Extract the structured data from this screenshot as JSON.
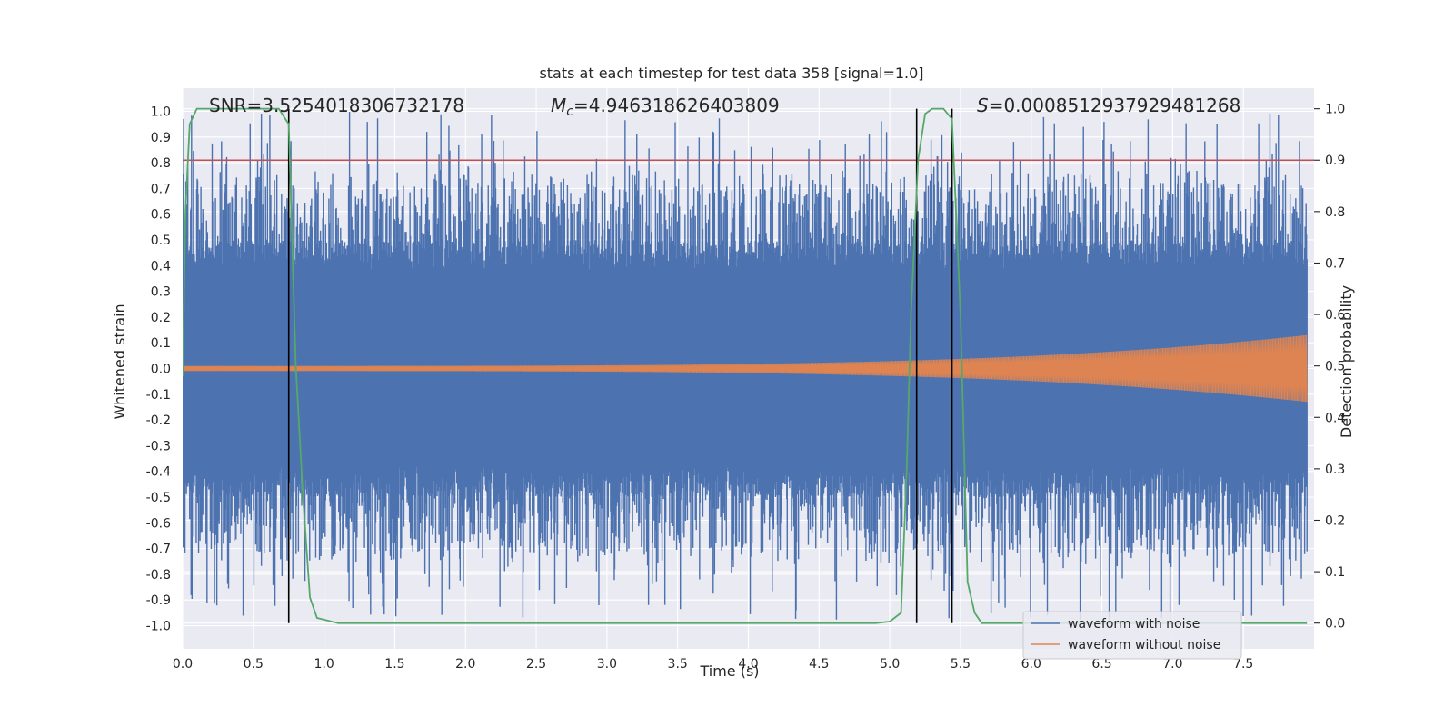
{
  "chart_data": {
    "type": "line",
    "title": "stats at each timestep for test data 358 [signal=1.0]",
    "xlabel": "Time (s)",
    "ylabel": "Whitened strain",
    "ylabel_right": "Detection probability",
    "xlim": [
      0.0,
      8.0
    ],
    "ylim": [
      -1.09,
      1.09
    ],
    "ylim_right": [
      -0.05,
      1.04
    ],
    "x_ticks": [
      "0.0",
      "0.5",
      "1.0",
      "1.5",
      "2.0",
      "2.5",
      "3.0",
      "3.5",
      "4.0",
      "4.5",
      "5.0",
      "5.5",
      "6.0",
      "6.5",
      "7.0",
      "7.5"
    ],
    "y_ticks": [
      "1.0",
      "0.9",
      "0.8",
      "0.7",
      "0.6",
      "0.5",
      "0.4",
      "0.3",
      "0.2",
      "0.1",
      "0.0",
      "-0.1",
      "-0.2",
      "-0.3",
      "-0.4",
      "-0.5",
      "-0.6",
      "-0.7",
      "-0.8",
      "-0.9",
      "-1.0"
    ],
    "y_ticks_right": [
      "1.0",
      "0.9",
      "0.8",
      "0.7",
      "0.6",
      "0.5",
      "0.4",
      "0.3",
      "0.2",
      "0.1",
      "0.0"
    ],
    "grid": true,
    "annotations": {
      "snr": "SNR=3.5254018306732178",
      "mc_symbol": "M",
      "mc_subscript": "c",
      "mc_value": "=4.946318626403809",
      "s_symbol": "S",
      "s_value": "=0.0008512937929481268"
    },
    "threshold": 0.9,
    "vertical_lines": [
      0.75,
      5.19,
      5.44
    ],
    "colors": {
      "noise": "#4c72b0",
      "clean": "#dd8452",
      "prob": "#55a868",
      "threshold": "#c44e52",
      "vline": "#000000",
      "axes_bg": "#eaeaf2"
    },
    "series": [
      {
        "name": "waveform with noise",
        "description_range": "dense noise spanning roughly -0.98 to 1.0 over 0.0 to 8.0 s",
        "amplitude_max": 1.0,
        "amplitude_min": -0.98
      },
      {
        "name": "waveform without noise",
        "chirp_amplitude_start": 0.01,
        "chirp_amplitude_end": 0.13
      },
      {
        "name": "detection probability",
        "x": [
          0.0,
          0.02,
          0.05,
          0.1,
          0.15,
          0.3,
          0.5,
          0.68,
          0.75,
          0.8,
          0.85,
          0.9,
          0.95,
          1.1,
          2.0,
          3.0,
          4.0,
          4.9,
          5.0,
          5.08,
          5.12,
          5.15,
          5.2,
          5.25,
          5.3,
          5.38,
          5.44,
          5.5,
          5.55,
          5.6,
          5.65,
          5.8,
          6.5,
          7.5,
          7.95
        ],
        "values": [
          0.48,
          0.8,
          0.97,
          1.0,
          1.0,
          1.0,
          1.0,
          1.0,
          0.97,
          0.5,
          0.25,
          0.05,
          0.01,
          0.0,
          0.0,
          0.0,
          0.0,
          0.0,
          0.003,
          0.02,
          0.3,
          0.6,
          0.9,
          0.99,
          1.0,
          1.0,
          0.98,
          0.6,
          0.08,
          0.02,
          0.0,
          0.0,
          0.0,
          0.0,
          0.0
        ]
      }
    ],
    "legend": {
      "placement": "lower-right",
      "entries": [
        "waveform with noise",
        "waveform without noise"
      ]
    }
  }
}
